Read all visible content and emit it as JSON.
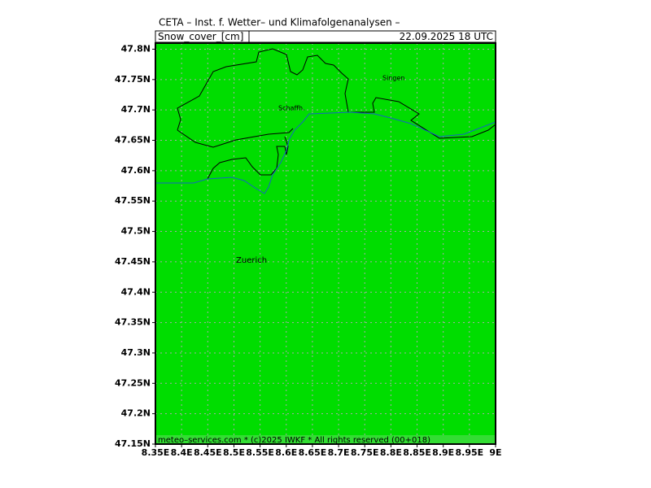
{
  "map": {
    "title": "CETA – Inst. f. Wetter– und Klimafolgenanalysen –",
    "variable": "Snow_cover_[cm]",
    "date": "22.09.2025 18 UTC",
    "lat_lim": [
      47.15,
      47.81
    ],
    "lon_lim": [
      8.35,
      9.0
    ],
    "lat_ticks": [
      {
        "value": 47.15,
        "label": "47.15N"
      },
      {
        "value": 47.2,
        "label": "47.2N"
      },
      {
        "value": 47.25,
        "label": "47.25N"
      },
      {
        "value": 47.3,
        "label": "47.3N"
      },
      {
        "value": 47.35,
        "label": "47.35N"
      },
      {
        "value": 47.4,
        "label": "47.4N"
      },
      {
        "value": 47.45,
        "label": "47.45N"
      },
      {
        "value": 47.5,
        "label": "47.5N"
      },
      {
        "value": 47.55,
        "label": "47.55N"
      },
      {
        "value": 47.6,
        "label": "47.6N"
      },
      {
        "value": 47.65,
        "label": "47.65N"
      },
      {
        "value": 47.7,
        "label": "47.7N"
      },
      {
        "value": 47.75,
        "label": "47.75N"
      },
      {
        "value": 47.8,
        "label": "47.8N"
      }
    ],
    "lon_ticks": [
      {
        "value": 8.35,
        "label": "8.35E"
      },
      {
        "value": 8.4,
        "label": "8.4E"
      },
      {
        "value": 8.45,
        "label": "8.45E"
      },
      {
        "value": 8.5,
        "label": "8.5E"
      },
      {
        "value": 8.55,
        "label": "8.55E"
      },
      {
        "value": 8.6,
        "label": "8.6E"
      },
      {
        "value": 8.65,
        "label": "8.65E"
      },
      {
        "value": 8.7,
        "label": "8.7E"
      },
      {
        "value": 8.75,
        "label": "8.75E"
      },
      {
        "value": 8.8,
        "label": "8.8E"
      },
      {
        "value": 8.85,
        "label": "8.85E"
      },
      {
        "value": 8.9,
        "label": "8.9E"
      },
      {
        "value": 8.95,
        "label": "8.95E"
      },
      {
        "value": 9.0,
        "label": "9E"
      }
    ],
    "places": [
      "Singen",
      "Schaffh.",
      "Zuerich"
    ],
    "footer": "meteo–services.com * (c)2025 IWKF * All rights reserved (00+018)",
    "fill_color": "#00dd00"
  }
}
